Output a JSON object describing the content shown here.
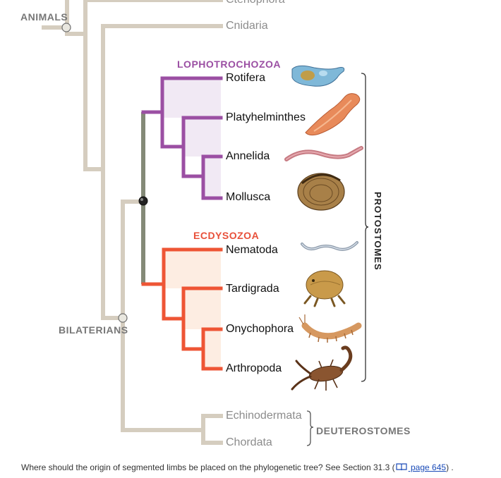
{
  "groups": {
    "animals": "ANIMALS",
    "bilaterians": "BILATERIANS",
    "lophotrochozoa": "LOPHOTROCHOZOA",
    "ecdysozoa": "ECDYSOZOA",
    "protostomes": "PROTOSTOMES",
    "deuterostomes": "DEUTEROSTOMES"
  },
  "taxa": {
    "ctenophora": "Ctenophora",
    "cnidaria": "Cnidaria",
    "rotifera": "Rotifera",
    "platyhelminthes": "Platyhelminthes",
    "annelida": "Annelida",
    "mollusca": "Mollusca",
    "nematoda": "Nematoda",
    "tardigrada": "Tardigrada",
    "onychophora": "Onychophora",
    "arthropoda": "Arthropoda",
    "echinodermata": "Echinodermata",
    "chordata": "Chordata"
  },
  "caption": {
    "question": "Where should the origin of segmented limbs be placed on the phylogenetic tree? See Section 31.3 (",
    "link": " page 645",
    "end": ") ."
  },
  "colors": {
    "trunk": "#d5cdbf",
    "lophotrochozoa": "#9b4fa3",
    "lophotrochozoa_fill": "#f1e9f4",
    "ecdysozoa": "#ee5535",
    "ecdysozoa_fill": "#fdede2",
    "protostome_stem": "#848a78"
  },
  "icons": [
    "book-icon",
    "rotifer-icon",
    "flatworm-icon",
    "earthworm-icon",
    "clam-icon",
    "roundworm-icon",
    "tardigrade-icon",
    "velvet-worm-icon",
    "scorpion-icon"
  ]
}
